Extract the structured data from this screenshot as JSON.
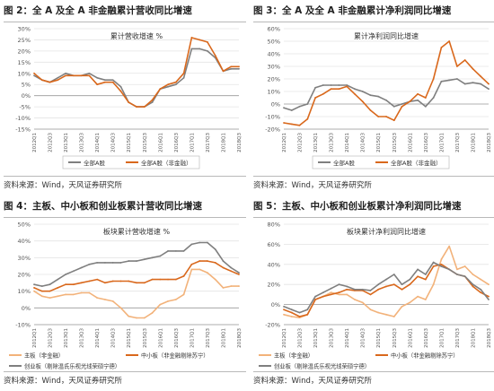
{
  "source_label": "资料来源：Wind，天风证券研究所",
  "colors": {
    "gray": "#7f7f7f",
    "orange": "#d9681c",
    "light_orange": "#f2b27a",
    "axis": "#999999",
    "grid": "#e4e4e4"
  },
  "x_labels": [
    "2012Q1",
    "2012Q3",
    "2013Q1",
    "2013Q3",
    "2014Q1",
    "2014Q3",
    "2015Q1",
    "2015Q3",
    "2016Q1",
    "2016Q3",
    "2017Q1",
    "2017Q3",
    "2018Q1",
    "2018Q3"
  ],
  "charts": [
    {
      "id": "fig2",
      "fig_title": "图 2：全 A 及全 A 非金融累计营收同比增速",
      "chart_data": {
        "type": "line",
        "title": "累计营收增速 %",
        "ylim": [
          -15,
          30
        ],
        "yticks": [
          -15,
          -10,
          -5,
          0,
          5,
          10,
          15,
          20,
          25,
          30
        ],
        "ytick_labels": [
          "-15%",
          "-10%",
          "-5%",
          "0%",
          "5%",
          "10%",
          "15%",
          "20%",
          "25%",
          "30%"
        ],
        "x": [
          "2012Q1",
          "2012Q2",
          "2012Q3",
          "2012Q4",
          "2013Q1",
          "2013Q2",
          "2013Q3",
          "2013Q4",
          "2014Q1",
          "2014Q2",
          "2014Q3",
          "2014Q4",
          "2015Q1",
          "2015Q2",
          "2015Q3",
          "2015Q4",
          "2016Q1",
          "2016Q2",
          "2016Q3",
          "2016Q4",
          "2017Q1",
          "2017Q2",
          "2017Q3",
          "2017Q4",
          "2018Q1",
          "2018Q2",
          "2018Q3"
        ],
        "series": [
          {
            "name": "全部A股",
            "color": "gray",
            "values": [
              9,
              7,
              6,
              8,
              10,
              9,
              9,
              10,
              8,
              7,
              7,
              4,
              -3,
              -5,
              -5,
              -3,
              3,
              4,
              5,
              8,
              21,
              21,
              20,
              17,
              11,
              12,
              12
            ]
          },
          {
            "name": "全部A股（非金融）",
            "color": "orange",
            "values": [
              10,
              7,
              6,
              7,
              9,
              9,
              9,
              9,
              5,
              6,
              6,
              2,
              -3,
              -5,
              -5,
              -2,
              3,
              5,
              6,
              10,
              26,
              25,
              24,
              18,
              11,
              13,
              13
            ]
          }
        ],
        "legend": "bottom"
      }
    },
    {
      "id": "fig3",
      "fig_title": "图 3：全 A 及全 A 非金融累计净利润同比增速",
      "chart_data": {
        "type": "line",
        "title": "累计净利润同比增速",
        "ylim": [
          -20,
          60
        ],
        "yticks": [
          -20,
          -10,
          0,
          10,
          20,
          30,
          40,
          50,
          60
        ],
        "ytick_labels": [
          "-20%",
          "-10%",
          "0%",
          "10%",
          "20%",
          "30%",
          "40%",
          "50%",
          "60%"
        ],
        "x": [
          "2012Q1",
          "2012Q2",
          "2012Q3",
          "2012Q4",
          "2013Q1",
          "2013Q2",
          "2013Q3",
          "2013Q4",
          "2014Q1",
          "2014Q2",
          "2014Q3",
          "2014Q4",
          "2015Q1",
          "2015Q2",
          "2015Q3",
          "2015Q4",
          "2016Q1",
          "2016Q2",
          "2016Q3",
          "2016Q4",
          "2017Q1",
          "2017Q2",
          "2017Q3",
          "2017Q4",
          "2018Q1",
          "2018Q2",
          "2018Q3"
        ],
        "series": [
          {
            "name": "全部A股",
            "color": "gray",
            "values": [
              -3,
              -5,
              -2,
              0,
              13,
              15,
              15,
              15,
              15,
              12,
              10,
              7,
              6,
              3,
              -2,
              0,
              2,
              3,
              -2,
              5,
              18,
              19,
              20,
              16,
              17,
              16,
              12
            ]
          },
          {
            "name": "全部A股（非金融）",
            "color": "orange",
            "values": [
              -15,
              -16,
              -17,
              -12,
              5,
              8,
              12,
              12,
              14,
              8,
              2,
              -5,
              -10,
              -10,
              -13,
              -2,
              2,
              8,
              5,
              20,
              45,
              50,
              30,
              35,
              28,
              22,
              16
            ]
          }
        ],
        "legend": "bottom"
      }
    },
    {
      "id": "fig4",
      "fig_title": "图 4：主板、中小板和创业板累计营收同比增速",
      "chart_data": {
        "type": "line",
        "title": "板块累计营收增速 %",
        "ylim": [
          -10,
          50
        ],
        "yticks": [
          -10,
          0,
          10,
          20,
          30,
          40,
          50
        ],
        "ytick_labels": [
          "-10%",
          "0%",
          "10%",
          "20%",
          "30%",
          "40%",
          "50%"
        ],
        "x": [
          "2012Q1",
          "2012Q2",
          "2012Q3",
          "2012Q4",
          "2013Q1",
          "2013Q2",
          "2013Q3",
          "2013Q4",
          "2014Q1",
          "2014Q2",
          "2014Q3",
          "2014Q4",
          "2015Q1",
          "2015Q2",
          "2015Q3",
          "2015Q4",
          "2016Q1",
          "2016Q2",
          "2016Q3",
          "2016Q4",
          "2017Q1",
          "2017Q2",
          "2017Q3",
          "2017Q4",
          "2018Q1",
          "2018Q2",
          "2018Q3"
        ],
        "series": [
          {
            "name": "主板（非金融）",
            "color": "light_orange",
            "values": [
              10,
              7,
              6,
              7,
              8,
              8,
              9,
              9,
              6,
              5,
              4,
              0,
              -5,
              -6,
              -6,
              -3,
              2,
              4,
              5,
              8,
              23,
              23,
              21,
              17,
              12,
              13,
              13
            ]
          },
          {
            "name": "中小板（非金融剔除苏宁）",
            "color": "orange",
            "values": [
              12,
              10,
              10,
              12,
              14,
              14,
              15,
              16,
              17,
              15,
              16,
              16,
              16,
              15,
              15,
              17,
              17,
              17,
              17,
              19,
              26,
              28,
              28,
              27,
              24,
              22,
              20
            ]
          },
          {
            "name": "创业板（剔除温氏乐视光线荣硕宁德）",
            "color": "gray",
            "values": [
              14,
              13,
              14,
              17,
              20,
              22,
              24,
              26,
              27,
              27,
              27,
              27,
              28,
              28,
              29,
              30,
              31,
              34,
              34,
              34,
              38,
              39,
              39,
              35,
              28,
              24,
              21
            ]
          }
        ],
        "legend": "bottom"
      }
    },
    {
      "id": "fig5",
      "fig_title": "图 5：主板、中小板和创业板累计净利润同比增速",
      "chart_data": {
        "type": "line",
        "title": "板块累计净利润同比增速",
        "ylim": [
          -20,
          80
        ],
        "yticks": [
          -20,
          0,
          20,
          40,
          60,
          80
        ],
        "ytick_labels": [
          "-20%",
          "0%",
          "20%",
          "40%",
          "60%",
          "80%"
        ],
        "x": [
          "2012Q1",
          "2012Q2",
          "2012Q3",
          "2012Q4",
          "2013Q1",
          "2013Q2",
          "2013Q3",
          "2013Q4",
          "2014Q1",
          "2014Q2",
          "2014Q3",
          "2014Q4",
          "2015Q1",
          "2015Q2",
          "2015Q3",
          "2015Q4",
          "2016Q1",
          "2016Q2",
          "2016Q3",
          "2016Q4",
          "2017Q1",
          "2017Q2",
          "2017Q3",
          "2017Q4",
          "2018Q1",
          "2018Q2",
          "2018Q3"
        ],
        "series": [
          {
            "name": "主板（非金融）",
            "color": "light_orange",
            "values": [
              -10,
              -12,
              -13,
              -10,
              5,
              8,
              12,
              10,
              10,
              5,
              2,
              -5,
              -8,
              -10,
              -12,
              -2,
              2,
              8,
              5,
              20,
              45,
              58,
              35,
              38,
              30,
              25,
              20
            ]
          },
          {
            "name": "中小板（非金融剔除苏宁）",
            "color": "orange",
            "values": [
              -5,
              -8,
              -12,
              -10,
              5,
              8,
              10,
              12,
              15,
              14,
              14,
              10,
              15,
              18,
              20,
              15,
              20,
              28,
              25,
              38,
              40,
              35,
              30,
              28,
              18,
              12,
              8
            ]
          },
          {
            "name": "创业板（剔除温氏乐视光线荣硕宁德）",
            "color": "gray",
            "values": [
              -2,
              -5,
              -8,
              -5,
              8,
              12,
              16,
              20,
              18,
              15,
              15,
              14,
              20,
              25,
              30,
              20,
              25,
              35,
              30,
              42,
              38,
              35,
              30,
              28,
              20,
              15,
              5
            ]
          }
        ],
        "legend": "bottom"
      }
    }
  ]
}
